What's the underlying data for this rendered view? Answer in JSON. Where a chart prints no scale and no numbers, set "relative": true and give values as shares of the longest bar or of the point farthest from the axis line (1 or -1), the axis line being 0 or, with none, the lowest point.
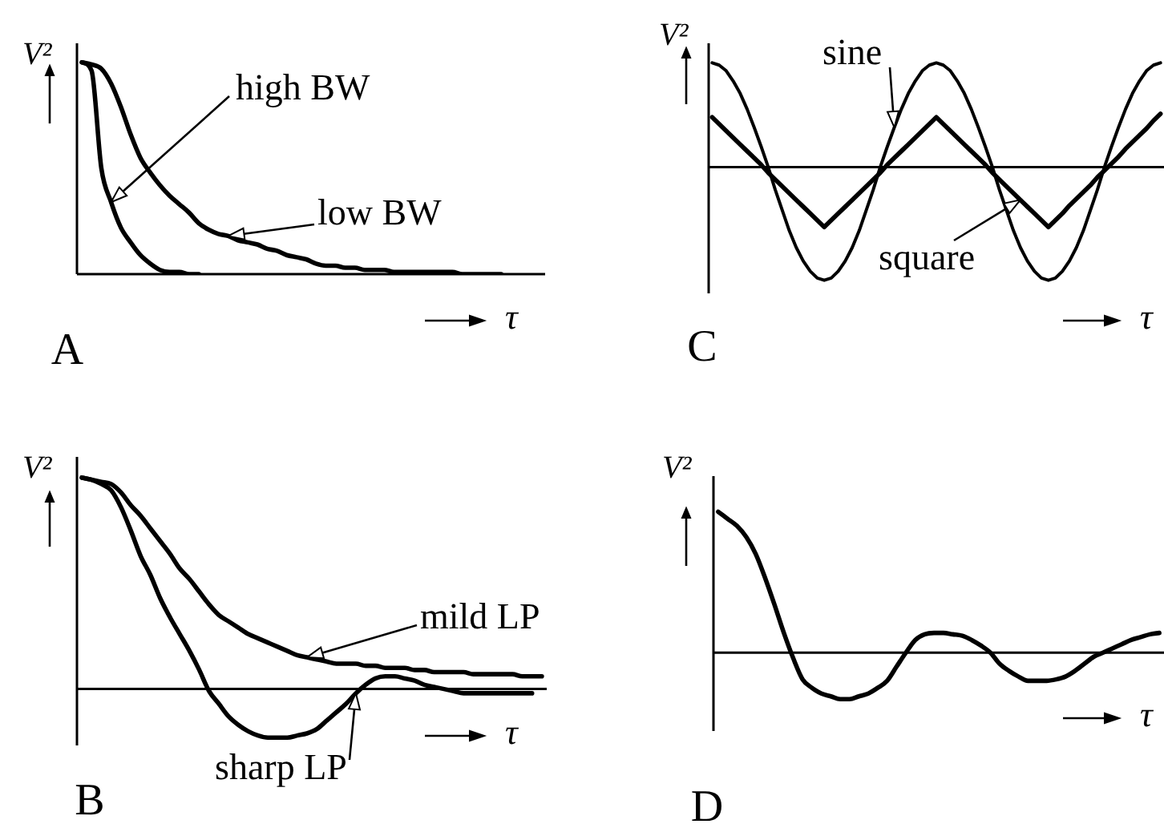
{
  "chart_data": [
    {
      "type": "line",
      "title": "A",
      "xlabel": "τ",
      "ylabel": "V²",
      "relative": true,
      "categories": [
        null,
        null,
        null,
        null,
        null,
        null,
        null,
        null,
        null,
        null,
        null,
        null,
        null,
        null,
        null,
        null,
        null,
        null,
        null,
        null,
        null,
        null,
        null,
        null,
        null,
        null,
        null,
        null,
        null,
        null,
        null,
        null,
        null,
        null,
        null,
        null,
        null,
        null,
        null,
        null,
        null,
        null,
        null,
        null,
        null,
        null,
        null,
        null
      ],
      "series": [
        {
          "name": "high BW",
          "color": "#000000",
          "values": [
            1,
            0.96,
            0.5,
            0.34,
            0.22,
            0.15,
            0.09,
            0.05,
            0.02,
            0.01,
            0.01,
            0,
            0,
            null,
            null,
            null,
            null,
            null,
            null,
            null,
            null,
            null,
            null,
            null,
            null,
            null,
            null,
            null,
            null,
            null,
            null,
            null,
            null,
            null,
            null,
            null,
            null,
            null,
            null,
            null,
            null,
            null,
            null,
            null,
            null,
            null,
            null,
            null
          ]
        },
        {
          "name": "low BW",
          "color": "#000000",
          "values": [
            1,
            0.99,
            0.97,
            0.9,
            0.79,
            0.66,
            0.55,
            0.48,
            0.42,
            0.37,
            0.33,
            0.29,
            0.24,
            0.21,
            0.19,
            0.18,
            0.16,
            0.15,
            0.14,
            0.12,
            0.11,
            0.09,
            0.08,
            0.07,
            0.05,
            0.04,
            0.04,
            0.03,
            0.03,
            0.02,
            0.02,
            0.02,
            0.01,
            0.01,
            0.01,
            0.01,
            0.01,
            0.01,
            0.01,
            0,
            0,
            0,
            0,
            0,
            null,
            null,
            null,
            null
          ]
        }
      ]
    },
    {
      "type": "line",
      "title": "C",
      "xlabel": "τ",
      "ylabel": "V²",
      "relative": true,
      "categories": [
        null,
        null,
        null,
        null,
        null,
        null,
        null,
        null,
        null,
        null,
        null,
        null,
        null,
        null,
        null,
        null,
        null,
        null,
        null,
        null,
        null,
        null,
        null,
        null,
        null,
        null,
        null,
        null,
        null,
        null,
        null,
        null,
        null,
        null,
        null,
        null,
        null,
        null,
        null,
        null,
        null,
        null,
        null,
        null,
        null,
        null,
        null,
        null,
        null,
        null,
        null,
        null,
        null,
        null,
        null,
        null,
        null,
        null,
        null,
        null,
        null,
        null,
        null,
        null,
        null
      ],
      "series": [
        {
          "name": "sine",
          "color": "#000000",
          "values": [
            0.92,
            0.9,
            0.85,
            0.76,
            0.65,
            0.51,
            0.35,
            0.18,
            0,
            -0.2,
            -0.38,
            -0.56,
            -0.71,
            -0.83,
            -0.92,
            -0.98,
            -1,
            -0.98,
            -0.92,
            -0.83,
            -0.71,
            -0.56,
            -0.38,
            -0.2,
            0,
            0.18,
            0.35,
            0.51,
            0.65,
            0.76,
            0.85,
            0.9,
            0.92,
            0.9,
            0.85,
            0.76,
            0.65,
            0.51,
            0.35,
            0.18,
            0,
            -0.2,
            -0.38,
            -0.56,
            -0.71,
            -0.83,
            -0.92,
            -0.98,
            -1,
            -0.98,
            -0.92,
            -0.83,
            -0.71,
            -0.56,
            -0.38,
            -0.2,
            0,
            0.18,
            0.35,
            0.51,
            0.65,
            0.76,
            0.85,
            0.9,
            0.92
          ]
        },
        {
          "name": "square",
          "color": "#000000",
          "values": [
            0.44,
            0.38,
            0.32,
            0.26,
            0.2,
            0.14,
            0.08,
            0.02,
            -0.05,
            -0.11,
            -0.17,
            -0.23,
            -0.29,
            -0.35,
            -0.41,
            -0.47,
            -0.53,
            -0.47,
            -0.41,
            -0.35,
            -0.29,
            -0.23,
            -0.17,
            -0.11,
            -0.05,
            0.02,
            0.08,
            0.14,
            0.2,
            0.26,
            0.32,
            0.38,
            0.44,
            0.38,
            0.32,
            0.26,
            0.2,
            0.14,
            0.08,
            0.02,
            -0.05,
            -0.11,
            -0.17,
            -0.23,
            -0.29,
            -0.35,
            -0.41,
            -0.47,
            -0.53,
            -0.47,
            -0.41,
            -0.34,
            -0.28,
            -0.22,
            -0.16,
            -0.09,
            -0.03,
            0.03,
            0.09,
            0.16,
            0.22,
            0.28,
            0.34,
            0.41,
            0.47
          ]
        }
      ]
    },
    {
      "type": "line",
      "title": "B",
      "xlabel": "τ",
      "ylabel": "V²",
      "relative": true,
      "categories": [
        null,
        null,
        null,
        null,
        null,
        null,
        null,
        null,
        null,
        null,
        null,
        null,
        null,
        null,
        null,
        null,
        null,
        null,
        null,
        null,
        null,
        null,
        null,
        null,
        null,
        null,
        null,
        null,
        null,
        null,
        null,
        null,
        null,
        null,
        null,
        null,
        null,
        null,
        null,
        null,
        null,
        null,
        null,
        null,
        null,
        null,
        null,
        null
      ],
      "series": [
        {
          "name": "sharp LP",
          "color": "#000000",
          "values": [
            1,
            0.99,
            0.97,
            0.94,
            0.86,
            0.75,
            0.63,
            0.54,
            0.43,
            0.34,
            0.26,
            0.18,
            0.09,
            -0.01,
            -0.07,
            -0.13,
            -0.17,
            -0.2,
            -0.22,
            -0.23,
            -0.23,
            -0.23,
            -0.22,
            -0.21,
            -0.19,
            -0.15,
            -0.11,
            -0.07,
            -0.02,
            0.02,
            0.05,
            0.06,
            0.06,
            0.05,
            0.04,
            0.02,
            0.01,
            0,
            -0.01,
            -0.02,
            -0.02,
            -0.02,
            -0.02,
            -0.02,
            -0.02,
            -0.02,
            -0.02,
            null
          ]
        },
        {
          "name": "mild LP",
          "color": "#000000",
          "values": [
            1,
            0.99,
            0.98,
            0.97,
            0.93,
            0.87,
            0.82,
            0.76,
            0.7,
            0.64,
            0.57,
            0.52,
            0.46,
            0.4,
            0.35,
            0.32,
            0.29,
            0.26,
            0.24,
            0.22,
            0.2,
            0.18,
            0.16,
            0.15,
            0.14,
            0.13,
            0.12,
            0.12,
            0.12,
            0.11,
            0.11,
            0.1,
            0.1,
            0.1,
            0.09,
            0.09,
            0.08,
            0.08,
            0.08,
            0.08,
            0.07,
            0.07,
            0.07,
            0.07,
            0.07,
            0.06,
            0.06,
            0.06
          ]
        }
      ]
    },
    {
      "type": "line",
      "title": "D",
      "xlabel": "τ",
      "ylabel": "V²",
      "relative": true,
      "categories": [
        null,
        null,
        null,
        null,
        null,
        null,
        null,
        null,
        null,
        null,
        null,
        null,
        null,
        null,
        null,
        null,
        null,
        null,
        null,
        null,
        null,
        null,
        null,
        null,
        null,
        null,
        null,
        null,
        null,
        null,
        null,
        null,
        null,
        null,
        null,
        null,
        null,
        null,
        null,
        null,
        null,
        null,
        null,
        null,
        null,
        null,
        null,
        null
      ],
      "color": "#000000",
      "values": [
        1,
        0.95,
        0.9,
        0.82,
        0.7,
        0.53,
        0.34,
        0.14,
        -0.04,
        -0.19,
        -0.25,
        -0.29,
        -0.31,
        -0.33,
        -0.33,
        -0.31,
        -0.29,
        -0.25,
        -0.2,
        -0.1,
        0,
        0.09,
        0.13,
        0.14,
        0.14,
        0.13,
        0.12,
        0.09,
        0.05,
        0,
        -0.08,
        -0.13,
        -0.17,
        -0.2,
        -0.2,
        -0.2,
        -0.19,
        -0.17,
        -0.13,
        -0.08,
        -0.03,
        0,
        0.03,
        0.06,
        0.09,
        0.11,
        0.13,
        0.14
      ]
    }
  ]
}
